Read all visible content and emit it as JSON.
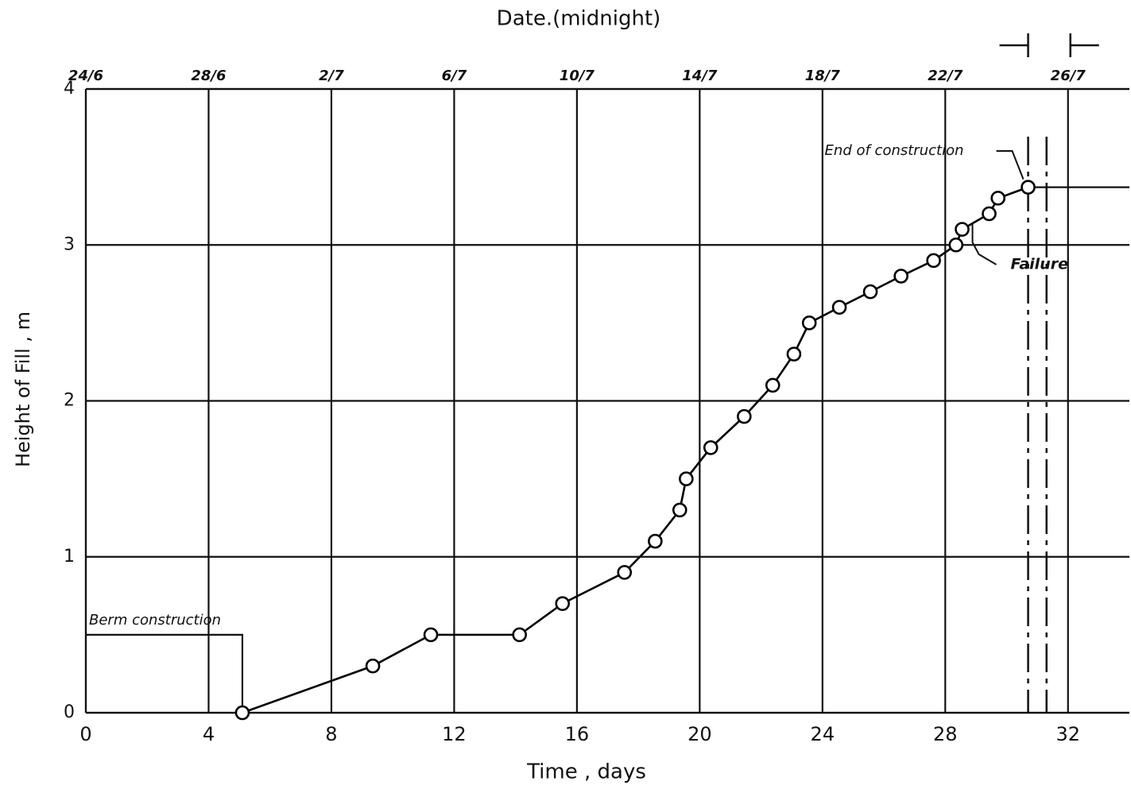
{
  "chart_data": {
    "type": "line",
    "title": "Date.(midnight)",
    "x_label": "Time , days",
    "y_label": "Height of Fill , m",
    "x": [
      5.1,
      9.35,
      11.24,
      14.13,
      15.53,
      17.55,
      18.55,
      19.35,
      19.56,
      20.36,
      21.45,
      22.38,
      23.07,
      23.57,
      24.55,
      25.56,
      26.56,
      27.62,
      28.35,
      28.55,
      29.43,
      29.72,
      30.7
    ],
    "values": [
      0,
      0.3,
      0.5,
      0.5,
      0.7,
      0.9,
      1.1,
      1.3,
      1.5,
      1.7,
      1.9,
      2.1,
      2.3,
      2.5,
      2.6,
      2.7,
      2.8,
      2.9,
      3.0,
      3.1,
      3.2,
      3.3,
      3.37
    ],
    "color": "#000000",
    "xlim": [
      0,
      34
    ],
    "ylim": [
      0,
      4
    ],
    "xticks": [
      0,
      4,
      8,
      12,
      16,
      20,
      24,
      28,
      32
    ],
    "yticks": [
      0,
      1,
      2,
      3,
      4
    ],
    "top_xticks": [
      {
        "value": 0,
        "label": "24/6"
      },
      {
        "value": 4,
        "label": "28/6"
      },
      {
        "value": 8,
        "label": "2/7"
      },
      {
        "value": 12,
        "label": "6/7"
      },
      {
        "value": 16,
        "label": "10/7"
      },
      {
        "value": 20,
        "label": "14/7"
      },
      {
        "value": 24,
        "label": "18/7"
      },
      {
        "value": 28,
        "label": "22/7"
      },
      {
        "value": 32,
        "label": "26/7"
      }
    ],
    "grid": true,
    "berm": {
      "label": "Berm construction",
      "height": 0.5,
      "x": [
        0,
        5.1
      ]
    },
    "end_label": "End of construction",
    "failure": {
      "label": "Failure",
      "x": [
        30.7,
        31.3
      ]
    }
  }
}
